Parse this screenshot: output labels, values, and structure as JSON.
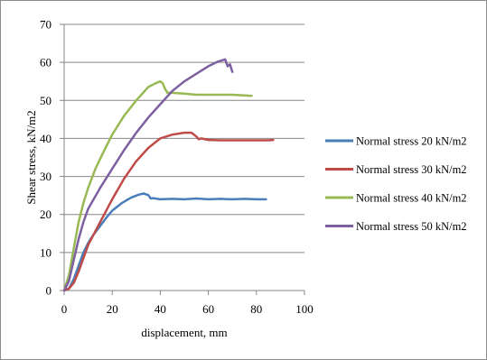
{
  "chart_data": {
    "type": "line",
    "title": "",
    "xlabel": "displacement, mm",
    "ylabel": "Shear stress, kN/m2",
    "xlim": [
      0,
      100
    ],
    "ylim": [
      0,
      70
    ],
    "x_ticks": [
      "0",
      "20",
      "40",
      "60",
      "80",
      "100"
    ],
    "y_ticks": [
      "0",
      "10",
      "20",
      "30",
      "40",
      "50",
      "60",
      "70"
    ],
    "grid": "horizontal",
    "legend_position": "right",
    "series": [
      {
        "name": "Normal stress 20 kN/m2",
        "color": "#4a7ebb",
        "x": [
          0,
          2,
          4,
          6,
          8,
          10,
          12,
          15,
          18,
          20,
          24,
          28,
          31,
          33,
          35,
          36,
          37,
          40,
          45,
          50,
          55,
          60,
          65,
          70,
          75,
          80,
          84
        ],
        "y": [
          0,
          0.5,
          3,
          6.5,
          10,
          12.5,
          14.5,
          17,
          19.5,
          21,
          23,
          24.5,
          25.2,
          25.5,
          25.1,
          24.2,
          24.3,
          24,
          24.1,
          24,
          24.2,
          24,
          24.1,
          24,
          24.1,
          24,
          24
        ]
      },
      {
        "name": "Normal stress 30 kN/m2",
        "color": "#be4b48",
        "x": [
          0,
          2,
          4,
          6,
          8,
          10,
          15,
          20,
          25,
          30,
          35,
          40,
          45,
          50,
          53,
          55,
          56,
          57,
          60,
          65,
          70,
          75,
          80,
          85,
          87
        ],
        "y": [
          0,
          0.5,
          2,
          5,
          8.5,
          12,
          18,
          24,
          29.5,
          34,
          37.5,
          40,
          41,
          41.5,
          41.5,
          40.5,
          39.8,
          40,
          39.6,
          39.5,
          39.5,
          39.5,
          39.5,
          39.5,
          39.6
        ]
      },
      {
        "name": "Normal stress 40 kN/m2",
        "color": "#98b954",
        "x": [
          0,
          2,
          4,
          6,
          8,
          10,
          13,
          16,
          20,
          25,
          30,
          35,
          38,
          40,
          41,
          42,
          43,
          45,
          50,
          55,
          60,
          65,
          70,
          75,
          78
        ],
        "y": [
          0,
          4,
          11,
          18,
          23,
          27,
          32,
          36,
          41,
          46,
          50,
          53.5,
          54.5,
          55,
          54.5,
          53,
          52,
          52,
          51.8,
          51.5,
          51.5,
          51.5,
          51.5,
          51.3,
          51.2
        ]
      },
      {
        "name": "Normal stress 50 kN/m2",
        "color": "#7d60a0",
        "x": [
          0,
          2,
          4,
          6,
          8,
          10,
          15,
          20,
          25,
          30,
          35,
          40,
          45,
          50,
          55,
          60,
          64,
          67,
          68,
          69,
          70
        ],
        "y": [
          0,
          2.5,
          8,
          13.5,
          18,
          21.5,
          27,
          32,
          37,
          41.5,
          45.5,
          49,
          52.5,
          55,
          57,
          59,
          60.2,
          60.8,
          59,
          59.5,
          57.5
        ]
      }
    ]
  }
}
